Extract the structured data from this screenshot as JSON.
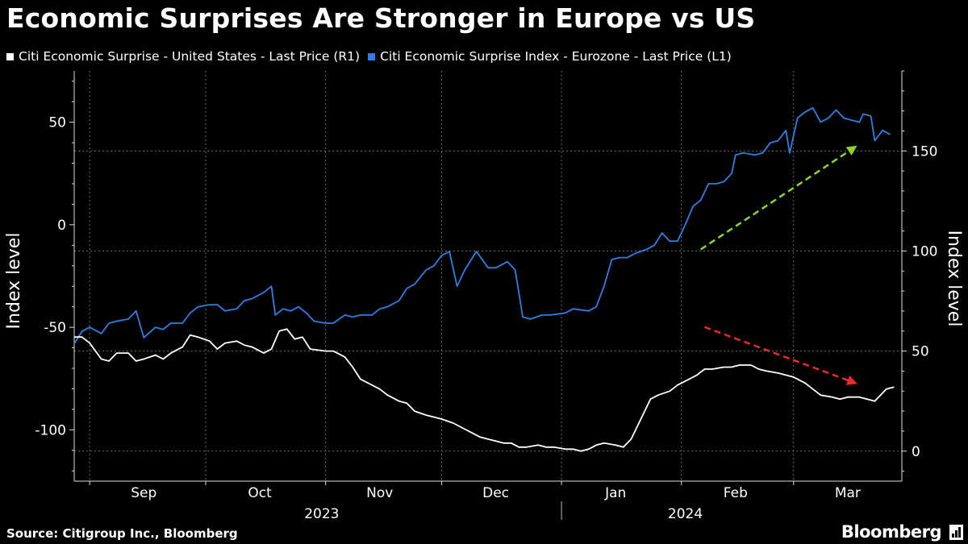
{
  "title": "Economic Surprises Are Stronger in Europe vs US",
  "source": "Source: Citigroup Inc., Bloomberg",
  "brand": "Bloomberg",
  "colors": {
    "us": "#ffffff",
    "eu": "#2f7fe0",
    "up_arrow": "#8fd42c",
    "down_arrow": "#ee2a2a",
    "grid": "#6a6a6a"
  },
  "legend": [
    {
      "label": "Citi Economic Surprise - United States - Last Price (R1)",
      "color": "#ffffff"
    },
    {
      "label": "Citi Economic Surprise Index - Eurozone - Last Price (L1)",
      "color": "#2f7fe0"
    }
  ],
  "chart_data": {
    "type": "line",
    "title": "Economic Surprises Are Stronger in Europe vs US",
    "x_start": "2023-08-28",
    "x_end": "2024-03-29",
    "month_labels": [
      {
        "label": "Sep",
        "date": "2023-09-15"
      },
      {
        "label": "Oct",
        "date": "2023-10-15"
      },
      {
        "label": "Nov",
        "date": "2023-11-15"
      },
      {
        "label": "Dec",
        "date": "2023-12-15"
      },
      {
        "label": "Jan",
        "date": "2024-01-15"
      },
      {
        "label": "Feb",
        "date": "2024-02-15"
      },
      {
        "label": "Mar",
        "date": "2024-03-15"
      }
    ],
    "month_ticks": [
      "2023-09-01",
      "2023-10-01",
      "2023-11-01",
      "2023-12-01",
      "2024-01-01",
      "2024-02-01",
      "2024-03-01"
    ],
    "year_labels": [
      {
        "label": "2023",
        "date": "2023-10-31"
      },
      {
        "label": "2024",
        "date": "2024-02-02"
      }
    ],
    "year_divider": "2024-01-01",
    "left_axis": {
      "label": "Index level",
      "min": -125,
      "max": 75,
      "ticks": [
        50,
        0,
        -50,
        -100
      ],
      "minor_step": 10
    },
    "right_axis": {
      "label": "Index level",
      "min": -15,
      "max": 190,
      "ticks": [
        150,
        100,
        50,
        0
      ],
      "minor_step": 10
    },
    "series": [
      {
        "name": "Citi Economic Surprise Index - Eurozone - Last Price (L1)",
        "axis": "left",
        "color": "#2f7fe0",
        "points": [
          [
            "2023-08-28",
            -58
          ],
          [
            "2023-08-30",
            -52
          ],
          [
            "2023-09-01",
            -50
          ],
          [
            "2023-09-04",
            -53
          ],
          [
            "2023-09-06",
            -48
          ],
          [
            "2023-09-08",
            -47
          ],
          [
            "2023-09-11",
            -46
          ],
          [
            "2023-09-13",
            -42
          ],
          [
            "2023-09-15",
            -55
          ],
          [
            "2023-09-18",
            -50
          ],
          [
            "2023-09-20",
            -51
          ],
          [
            "2023-09-22",
            -48
          ],
          [
            "2023-09-25",
            -48
          ],
          [
            "2023-09-27",
            -43
          ],
          [
            "2023-09-29",
            -40
          ],
          [
            "2023-10-02",
            -39
          ],
          [
            "2023-10-04",
            -39
          ],
          [
            "2023-10-06",
            -42
          ],
          [
            "2023-10-09",
            -41
          ],
          [
            "2023-10-11",
            -37
          ],
          [
            "2023-10-13",
            -36
          ],
          [
            "2023-10-16",
            -33
          ],
          [
            "2023-10-18",
            -30
          ],
          [
            "2023-10-19",
            -44
          ],
          [
            "2023-10-21",
            -41
          ],
          [
            "2023-10-23",
            -42
          ],
          [
            "2023-10-25",
            -40
          ],
          [
            "2023-10-27",
            -43
          ],
          [
            "2023-10-29",
            -47
          ],
          [
            "2023-11-01",
            -48
          ],
          [
            "2023-11-03",
            -48
          ],
          [
            "2023-11-06",
            -44
          ],
          [
            "2023-11-08",
            -45
          ],
          [
            "2023-11-10",
            -44
          ],
          [
            "2023-11-13",
            -44
          ],
          [
            "2023-11-15",
            -41
          ],
          [
            "2023-11-17",
            -40
          ],
          [
            "2023-11-20",
            -37
          ],
          [
            "2023-11-22",
            -31
          ],
          [
            "2023-11-24",
            -29
          ],
          [
            "2023-11-27",
            -22
          ],
          [
            "2023-11-29",
            -20
          ],
          [
            "2023-12-01",
            -15
          ],
          [
            "2023-12-03",
            -13
          ],
          [
            "2023-12-05",
            -30
          ],
          [
            "2023-12-07",
            -22
          ],
          [
            "2023-12-10",
            -13
          ],
          [
            "2023-12-13",
            -21
          ],
          [
            "2023-12-15",
            -21
          ],
          [
            "2023-12-18",
            -18
          ],
          [
            "2023-12-20",
            -22
          ],
          [
            "2023-12-22",
            -45
          ],
          [
            "2023-12-24",
            -46
          ],
          [
            "2023-12-27",
            -44
          ],
          [
            "2023-12-29",
            -44
          ],
          [
            "2024-01-02",
            -43
          ],
          [
            "2024-01-04",
            -41
          ],
          [
            "2024-01-08",
            -42
          ],
          [
            "2024-01-10",
            -40
          ],
          [
            "2024-01-12",
            -30
          ],
          [
            "2024-01-14",
            -17
          ],
          [
            "2024-01-16",
            -16
          ],
          [
            "2024-01-18",
            -16
          ],
          [
            "2024-01-20",
            -14
          ],
          [
            "2024-01-23",
            -12
          ],
          [
            "2024-01-25",
            -10
          ],
          [
            "2024-01-27",
            -4
          ],
          [
            "2024-01-29",
            -8
          ],
          [
            "2024-01-31",
            -8
          ],
          [
            "2024-02-02",
            0
          ],
          [
            "2024-02-04",
            9
          ],
          [
            "2024-02-06",
            12
          ],
          [
            "2024-02-08",
            20
          ],
          [
            "2024-02-10",
            20
          ],
          [
            "2024-02-12",
            21
          ],
          [
            "2024-02-14",
            25
          ],
          [
            "2024-02-15",
            34
          ],
          [
            "2024-02-17",
            35
          ],
          [
            "2024-02-20",
            34
          ],
          [
            "2024-02-22",
            35
          ],
          [
            "2024-02-24",
            40
          ],
          [
            "2024-02-26",
            41
          ],
          [
            "2024-02-28",
            46
          ],
          [
            "2024-02-29",
            35
          ],
          [
            "2024-03-02",
            52
          ],
          [
            "2024-03-04",
            55
          ],
          [
            "2024-03-06",
            57
          ],
          [
            "2024-03-08",
            50
          ],
          [
            "2024-03-10",
            52
          ],
          [
            "2024-03-12",
            56
          ],
          [
            "2024-03-14",
            52
          ],
          [
            "2024-03-16",
            51
          ],
          [
            "2024-03-18",
            50
          ],
          [
            "2024-03-19",
            54
          ],
          [
            "2024-03-21",
            53
          ],
          [
            "2024-03-22",
            41
          ],
          [
            "2024-03-24",
            46
          ],
          [
            "2024-03-26",
            44
          ]
        ]
      },
      {
        "name": "Citi Economic Surprise - United States - Last Price (R1)",
        "axis": "right",
        "color": "#ffffff",
        "points": [
          [
            "2023-08-28",
            57
          ],
          [
            "2023-08-30",
            57
          ],
          [
            "2023-09-01",
            54
          ],
          [
            "2023-09-04",
            46
          ],
          [
            "2023-09-06",
            45
          ],
          [
            "2023-09-08",
            49
          ],
          [
            "2023-09-11",
            49
          ],
          [
            "2023-09-13",
            45
          ],
          [
            "2023-09-15",
            46
          ],
          [
            "2023-09-18",
            48
          ],
          [
            "2023-09-20",
            46
          ],
          [
            "2023-09-22",
            49
          ],
          [
            "2023-09-25",
            52
          ],
          [
            "2023-09-27",
            58
          ],
          [
            "2023-09-29",
            57
          ],
          [
            "2023-10-02",
            55
          ],
          [
            "2023-10-04",
            51
          ],
          [
            "2023-10-06",
            54
          ],
          [
            "2023-10-09",
            55
          ],
          [
            "2023-10-11",
            53
          ],
          [
            "2023-10-13",
            52
          ],
          [
            "2023-10-16",
            49
          ],
          [
            "2023-10-18",
            51
          ],
          [
            "2023-10-20",
            60
          ],
          [
            "2023-10-22",
            61
          ],
          [
            "2023-10-24",
            56
          ],
          [
            "2023-10-26",
            57
          ],
          [
            "2023-10-28",
            51
          ],
          [
            "2023-11-01",
            50
          ],
          [
            "2023-11-03",
            50
          ],
          [
            "2023-11-06",
            47
          ],
          [
            "2023-11-08",
            42
          ],
          [
            "2023-11-10",
            36
          ],
          [
            "2023-11-13",
            33
          ],
          [
            "2023-11-15",
            31
          ],
          [
            "2023-11-17",
            28
          ],
          [
            "2023-11-20",
            25
          ],
          [
            "2023-11-22",
            24
          ],
          [
            "2023-11-24",
            20
          ],
          [
            "2023-11-27",
            18
          ],
          [
            "2023-11-29",
            17
          ],
          [
            "2023-12-01",
            16
          ],
          [
            "2023-12-04",
            14
          ],
          [
            "2023-12-06",
            12
          ],
          [
            "2023-12-08",
            10
          ],
          [
            "2023-12-11",
            7
          ],
          [
            "2023-12-13",
            6
          ],
          [
            "2023-12-15",
            5
          ],
          [
            "2023-12-17",
            4
          ],
          [
            "2023-12-19",
            4
          ],
          [
            "2023-12-21",
            2
          ],
          [
            "2023-12-23",
            2
          ],
          [
            "2023-12-26",
            3
          ],
          [
            "2023-12-28",
            2
          ],
          [
            "2023-12-30",
            2
          ],
          [
            "2024-01-02",
            1
          ],
          [
            "2024-01-04",
            1
          ],
          [
            "2024-01-06",
            0
          ],
          [
            "2024-01-08",
            1
          ],
          [
            "2024-01-10",
            3
          ],
          [
            "2024-01-12",
            4
          ],
          [
            "2024-01-15",
            3
          ],
          [
            "2024-01-17",
            2
          ],
          [
            "2024-01-19",
            6
          ],
          [
            "2024-01-22",
            18
          ],
          [
            "2024-01-24",
            26
          ],
          [
            "2024-01-26",
            28
          ],
          [
            "2024-01-29",
            30
          ],
          [
            "2024-01-31",
            33
          ],
          [
            "2024-02-02",
            35
          ],
          [
            "2024-02-05",
            38
          ],
          [
            "2024-02-07",
            41
          ],
          [
            "2024-02-09",
            41
          ],
          [
            "2024-02-12",
            42
          ],
          [
            "2024-02-14",
            42
          ],
          [
            "2024-02-16",
            43
          ],
          [
            "2024-02-19",
            43
          ],
          [
            "2024-02-21",
            41
          ],
          [
            "2024-02-23",
            40
          ],
          [
            "2024-02-26",
            39
          ],
          [
            "2024-02-28",
            38
          ],
          [
            "2024-03-01",
            37
          ],
          [
            "2024-03-04",
            34
          ],
          [
            "2024-03-06",
            31
          ],
          [
            "2024-03-08",
            28
          ],
          [
            "2024-03-11",
            27
          ],
          [
            "2024-03-13",
            26
          ],
          [
            "2024-03-15",
            27
          ],
          [
            "2024-03-18",
            27
          ],
          [
            "2024-03-20",
            26
          ],
          [
            "2024-03-22",
            25
          ],
          [
            "2024-03-25",
            31
          ],
          [
            "2024-03-27",
            32
          ]
        ]
      }
    ],
    "annotations": [
      {
        "name": "eurozone-trend-arrow",
        "axis": "left",
        "from": [
          "2024-02-06",
          -12
        ],
        "to": [
          "2024-03-17",
          38
        ],
        "color": "#8fd42c",
        "style": "dashed"
      },
      {
        "name": "us-trend-arrow",
        "axis": "right",
        "from": [
          "2024-02-07",
          62
        ],
        "to": [
          "2024-03-17",
          34
        ],
        "color": "#ee2a2a",
        "style": "dashed"
      }
    ]
  }
}
